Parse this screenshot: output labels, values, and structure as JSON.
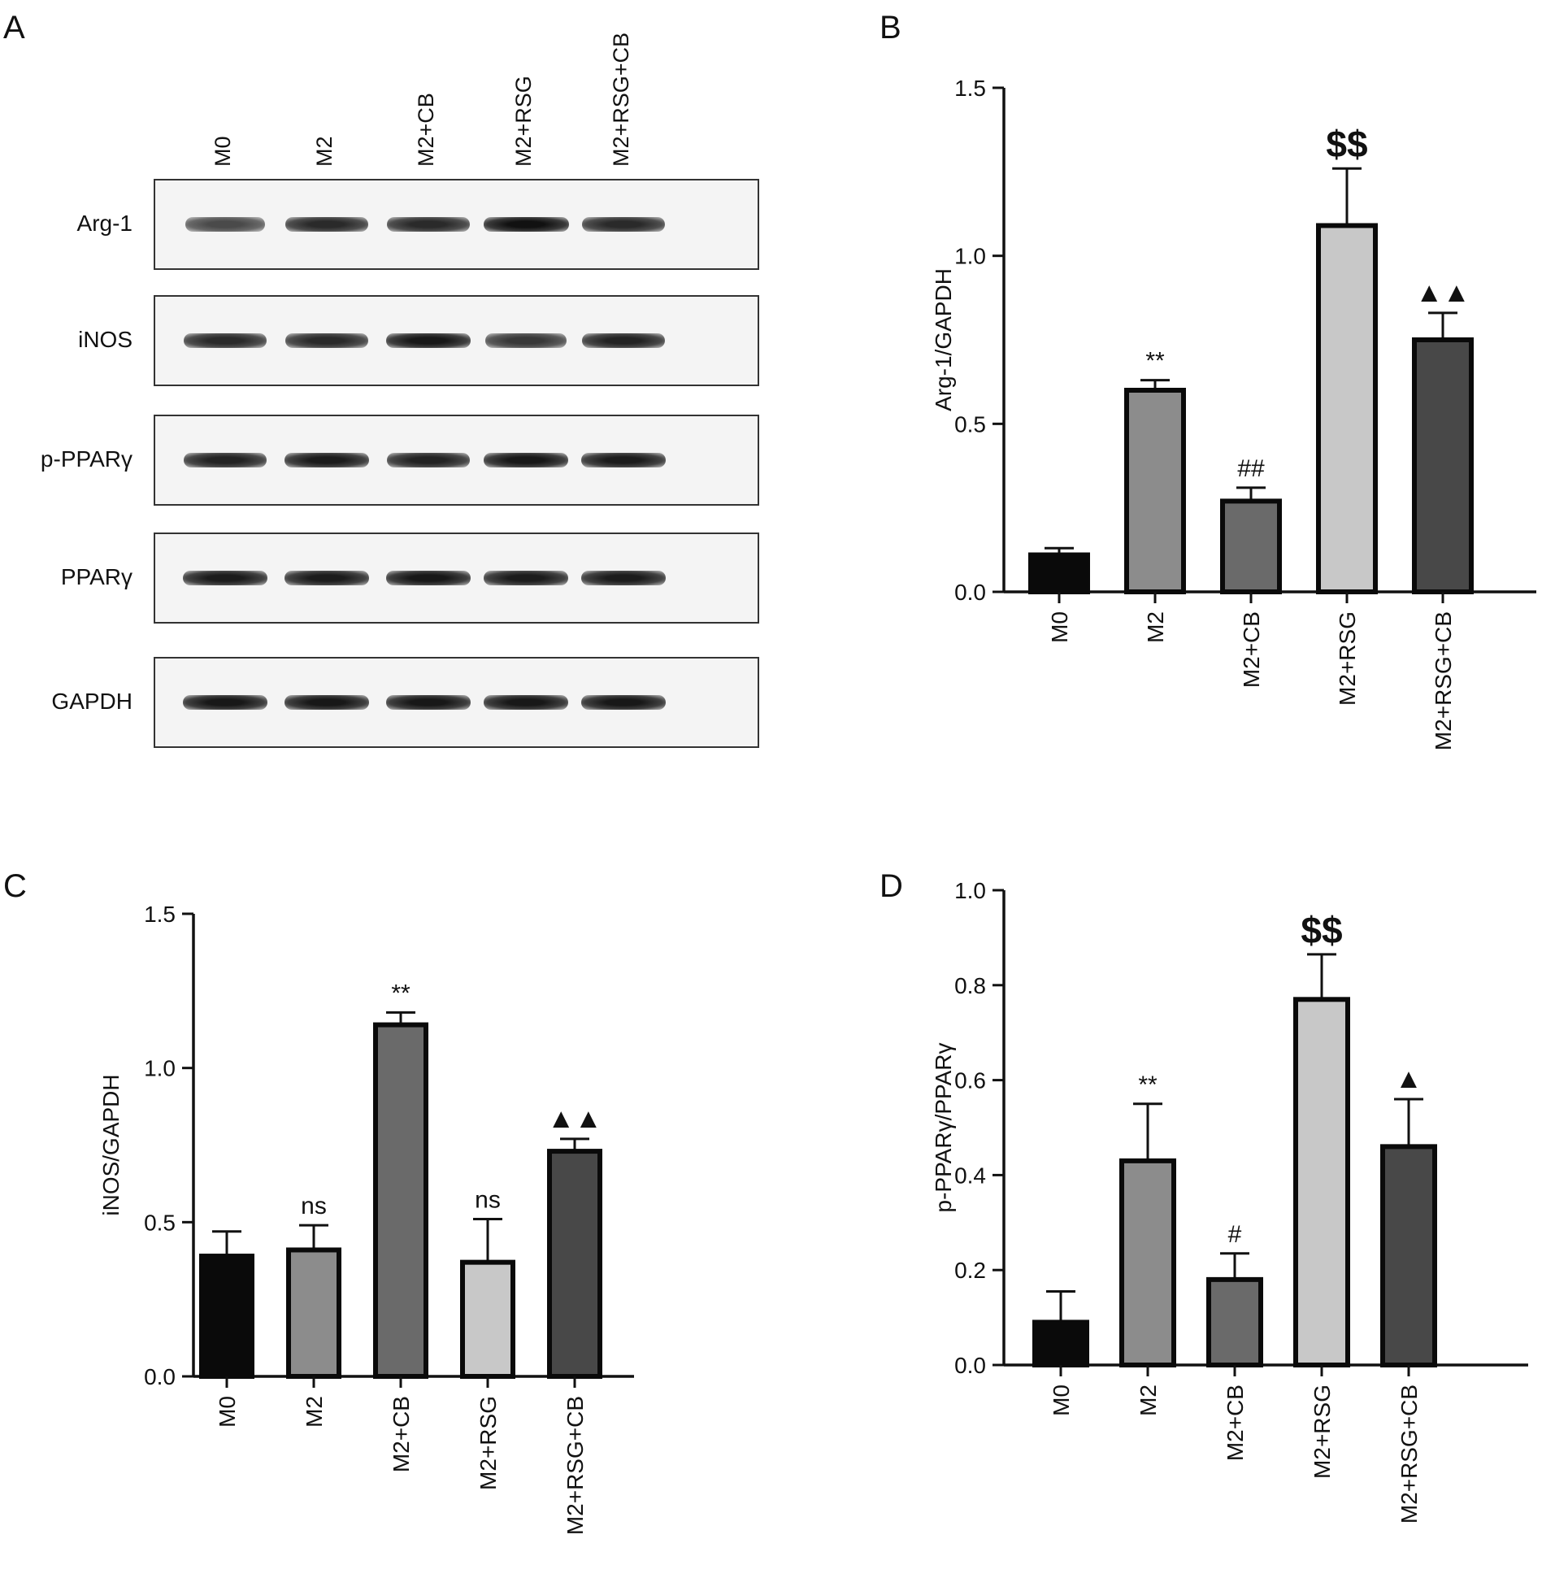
{
  "panels": {
    "a": "A",
    "b": "B",
    "c": "C",
    "d": "D"
  },
  "blot": {
    "lanes": [
      "M0",
      "M2",
      "M2+CB",
      "M2+RSG",
      "M2+RSG+CB"
    ],
    "rows": [
      {
        "label": "Arg-1",
        "intensity": [
          0.55,
          0.8,
          0.8,
          1.0,
          0.8
        ]
      },
      {
        "label": "iNOS",
        "intensity": [
          0.8,
          0.8,
          0.95,
          0.7,
          0.85
        ]
      },
      {
        "label": "p-PPARγ",
        "intensity": [
          0.85,
          0.9,
          0.85,
          0.95,
          0.9
        ]
      },
      {
        "label": "PPARγ",
        "intensity": [
          0.9,
          0.9,
          0.95,
          0.9,
          0.9
        ]
      },
      {
        "label": "GAPDH",
        "intensity": [
          0.95,
          0.95,
          0.95,
          0.95,
          0.95
        ]
      }
    ]
  },
  "chart_data": [
    {
      "panel": "B",
      "type": "bar",
      "categories": [
        "M0",
        "M2",
        "M2+CB",
        "M2+RSG",
        "M2+RSG+CB"
      ],
      "values": [
        0.11,
        0.6,
        0.27,
        1.09,
        0.75
      ],
      "errors": [
        0.02,
        0.03,
        0.04,
        0.17,
        0.08
      ],
      "annotations": [
        "",
        "**",
        "##",
        "$$",
        "▲▲"
      ],
      "ylabel": "Arg-1/GAPDH",
      "ylim": [
        0,
        1.5
      ],
      "yticks": [
        "0.0",
        "0.5",
        "1.0",
        "1.5"
      ],
      "colors": [
        "#0a0a0a",
        "#8c8c8c",
        "#6a6a6a",
        "#c8c8c8",
        "#484848"
      ]
    },
    {
      "panel": "C",
      "type": "bar",
      "categories": [
        "M0",
        "M2",
        "M2+CB",
        "M2+RSG",
        "M2+RSG+CB"
      ],
      "values": [
        0.39,
        0.41,
        1.14,
        0.37,
        0.73
      ],
      "errors": [
        0.08,
        0.08,
        0.04,
        0.14,
        0.04
      ],
      "annotations": [
        "",
        "ns",
        "**",
        "ns",
        "▲▲"
      ],
      "ylabel": "iNOS/GAPDH",
      "ylim": [
        0,
        1.5
      ],
      "yticks": [
        "0.0",
        "0.5",
        "1.0",
        "1.5"
      ],
      "colors": [
        "#0a0a0a",
        "#8c8c8c",
        "#6a6a6a",
        "#c8c8c8",
        "#484848"
      ]
    },
    {
      "panel": "D",
      "type": "bar",
      "categories": [
        "M0",
        "M2",
        "M2+CB",
        "M2+RSG",
        "M2+RSG+CB"
      ],
      "values": [
        0.09,
        0.43,
        0.18,
        0.77,
        0.46
      ],
      "errors": [
        0.065,
        0.12,
        0.055,
        0.095,
        0.1
      ],
      "annotations": [
        "",
        "**",
        "#",
        "$$",
        "▲"
      ],
      "ylabel": "p-PPARγ/PPARγ",
      "ylim": [
        0,
        1.0
      ],
      "yticks": [
        "0.0",
        "0.2",
        "0.4",
        "0.6",
        "0.8",
        "1.0"
      ],
      "colors": [
        "#0a0a0a",
        "#8c8c8c",
        "#6a6a6a",
        "#c8c8c8",
        "#484848"
      ]
    }
  ]
}
